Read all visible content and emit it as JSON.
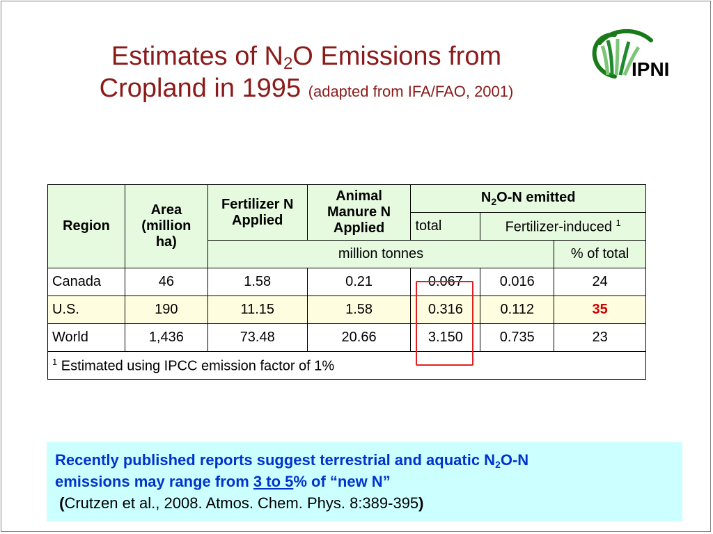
{
  "title": {
    "line1_pre": "Estimates of N",
    "line1_sub": "2",
    "line1_post": "O Emissions from",
    "line2_main": "Cropland in 1995",
    "line2_note": "(adapted from IFA/FAO, 2001)"
  },
  "logo": {
    "text": "IPNI",
    "colors": {
      "arc": "#1a7a1a",
      "leaf_dark": "#1f8a2b",
      "leaf_light": "#7cc576"
    }
  },
  "table": {
    "headers": {
      "region": "Region",
      "area": "Area (million ha)",
      "fertilizer": "Fertilizer N Applied",
      "manure": "Animal Manure N Applied",
      "emitted_pre": "N",
      "emitted_sub": "2",
      "emitted_post": "O-N emitted",
      "total": "total",
      "fert_induced": "Fertilizer-induced",
      "fert_induced_sup": "1",
      "units_million": "million tonnes",
      "units_pct": "% of total"
    },
    "rows": [
      {
        "region": "Canada",
        "area": "46",
        "fertilizer": "1.58",
        "manure": "0.21",
        "total": "0.067",
        "fert_induced": "0.016",
        "pct": "24"
      },
      {
        "region": "U.S.",
        "area": "190",
        "fertilizer": "11.15",
        "manure": "1.58",
        "total": "0.316",
        "fert_induced": "0.112",
        "pct": "35"
      },
      {
        "region": "World",
        "area": "1,436",
        "fertilizer": "73.48",
        "manure": "20.66",
        "total": "3.150",
        "fert_induced": "0.735",
        "pct": "23"
      }
    ],
    "footnote_sup": "1",
    "footnote": "Estimated using IPCC emission factor of 1%",
    "colors": {
      "header_bg": "#e6fae0",
      "us_row_bg": "#fffde0",
      "highlight": "#e02020",
      "us_pct": "#cc0000"
    }
  },
  "note": {
    "line1_pre": "Recently published reports suggest terrestrial and aquatic N",
    "line1_sub": "2",
    "line1_post": "O-N",
    "line2_pre": "emissions may range from ",
    "line2_underlined": "3 to 5",
    "line2_post": "% of “new N”",
    "line3_open": "(",
    "line3_citation": "Crutzen et al., 2008. Atmos. Chem. Phys. 8:389-395",
    "line3_close": ")",
    "colors": {
      "background": "#ccffff",
      "text": "#0033cc"
    }
  }
}
